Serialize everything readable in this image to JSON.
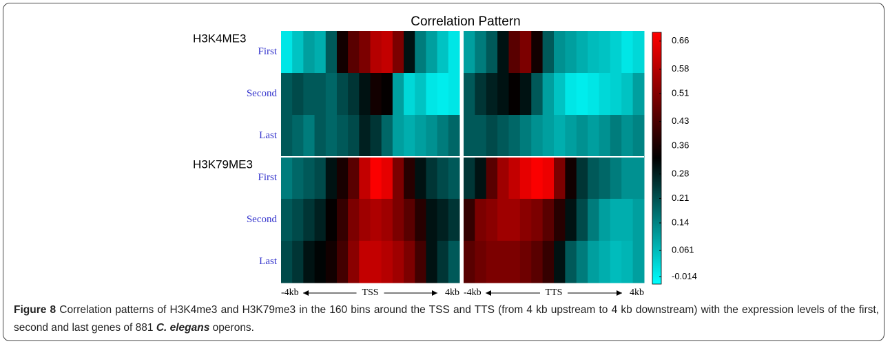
{
  "chart_data": {
    "type": "heatmap",
    "title": "Correlation Pattern",
    "groups": [
      {
        "name": "H3K4ME3",
        "rows": [
          "First",
          "Second",
          "Last"
        ]
      },
      {
        "name": "H3K79ME3",
        "rows": [
          "First",
          "Second",
          "Last"
        ]
      }
    ],
    "panels": [
      {
        "ticks": [
          "-4kb",
          "TSS",
          "4kb"
        ],
        "values": [
          [
            0.0,
            0.05,
            0.1,
            0.08,
            0.2,
            0.35,
            0.45,
            0.5,
            0.58,
            0.6,
            0.5,
            0.3,
            0.15,
            0.1,
            0.05,
            0.0
          ],
          [
            0.2,
            0.22,
            0.2,
            0.2,
            0.18,
            0.22,
            0.25,
            0.3,
            0.35,
            0.33,
            0.1,
            0.02,
            0.05,
            0.0,
            -0.01,
            0.0
          ],
          [
            0.2,
            0.18,
            0.15,
            0.2,
            0.18,
            0.2,
            0.22,
            0.28,
            0.25,
            0.18,
            0.1,
            0.08,
            0.1,
            0.12,
            0.15,
            0.18
          ],
          [
            0.15,
            0.18,
            0.2,
            0.22,
            0.3,
            0.36,
            0.45,
            0.6,
            0.68,
            0.65,
            0.5,
            0.38,
            0.3,
            0.25,
            0.22,
            0.2
          ],
          [
            0.2,
            0.22,
            0.25,
            0.28,
            0.33,
            0.4,
            0.5,
            0.55,
            0.57,
            0.55,
            0.5,
            0.45,
            0.38,
            0.3,
            0.28,
            0.25
          ],
          [
            0.22,
            0.25,
            0.3,
            0.32,
            0.35,
            0.42,
            0.52,
            0.6,
            0.6,
            0.58,
            0.55,
            0.5,
            0.42,
            0.3,
            0.25,
            0.2
          ]
        ]
      },
      {
        "ticks": [
          "-4kb",
          "TTS",
          "4kb"
        ],
        "values": [
          [
            0.1,
            0.15,
            0.2,
            0.3,
            0.45,
            0.5,
            0.35,
            0.2,
            0.12,
            0.1,
            0.08,
            0.06,
            0.05,
            0.03,
            0.0,
            0.02
          ],
          [
            0.2,
            0.25,
            0.28,
            0.3,
            0.33,
            0.3,
            0.2,
            0.1,
            0.05,
            0.0,
            -0.01,
            0.0,
            0.02,
            0.03,
            0.05,
            0.1
          ],
          [
            0.2,
            0.2,
            0.22,
            0.2,
            0.18,
            0.15,
            0.12,
            0.1,
            0.08,
            0.1,
            0.12,
            0.1,
            0.12,
            0.15,
            0.12,
            0.14
          ],
          [
            0.25,
            0.3,
            0.45,
            0.55,
            0.6,
            0.65,
            0.68,
            0.66,
            0.5,
            0.35,
            0.25,
            0.2,
            0.18,
            0.15,
            0.12,
            0.12
          ],
          [
            0.4,
            0.5,
            0.52,
            0.55,
            0.55,
            0.52,
            0.5,
            0.45,
            0.38,
            0.3,
            0.22,
            0.15,
            0.1,
            0.08,
            0.08,
            0.1
          ],
          [
            0.45,
            0.48,
            0.5,
            0.5,
            0.5,
            0.48,
            0.45,
            0.4,
            0.3,
            0.2,
            0.15,
            0.1,
            0.08,
            0.06,
            0.07,
            0.1
          ]
        ]
      }
    ],
    "colorbar": {
      "lim": [
        -0.035,
        0.685
      ],
      "colors": [
        "#00ffff",
        "#000000",
        "#ff0000"
      ],
      "ticks": [
        0.66,
        0.58,
        0.51,
        0.43,
        0.36,
        0.28,
        0.21,
        0.14,
        0.061,
        -0.014
      ]
    },
    "caption": {
      "label": "Figure 8",
      "text": "Correlation patterns of H3K4me3 and H3K79me3 in the 160 bins around the TSS and TTS (from 4 kb upstream to 4 kb downstream) with the expression levels of the first, second and last genes of 881",
      "species": "C. elegans",
      "end": "operons."
    }
  }
}
